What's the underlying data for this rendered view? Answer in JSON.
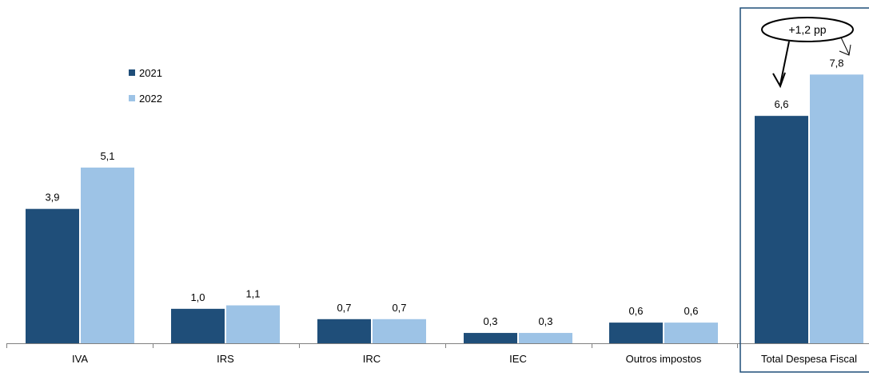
{
  "chart_data": {
    "type": "bar",
    "categories": [
      "IVA",
      "IRS",
      "IRC",
      "IEC",
      "Outros impostos",
      "Total Despesa Fiscal"
    ],
    "series": [
      {
        "name": "2021",
        "color": "#1f4e79",
        "values": [
          3.9,
          1.0,
          0.7,
          0.3,
          0.6,
          6.6
        ],
        "labels": [
          "3,9",
          "1,0",
          "0,7",
          "0,3",
          "0,6",
          "6,6"
        ]
      },
      {
        "name": "2022",
        "color": "#9dc3e6",
        "values": [
          5.1,
          1.1,
          0.7,
          0.3,
          0.6,
          7.8
        ],
        "labels": [
          "5,1",
          "1,1",
          "0,7",
          "0,3",
          "0,6",
          "7,8"
        ]
      }
    ],
    "ylim": [
      0,
      9.5
    ],
    "grid": false,
    "legend_position": "top-left",
    "highlighted_category": "Total Despesa Fiscal",
    "highlight_border_color": "#1f4e79",
    "annotation": {
      "text": "+1,2  pp",
      "target_category": "Total Despesa Fiscal"
    }
  }
}
